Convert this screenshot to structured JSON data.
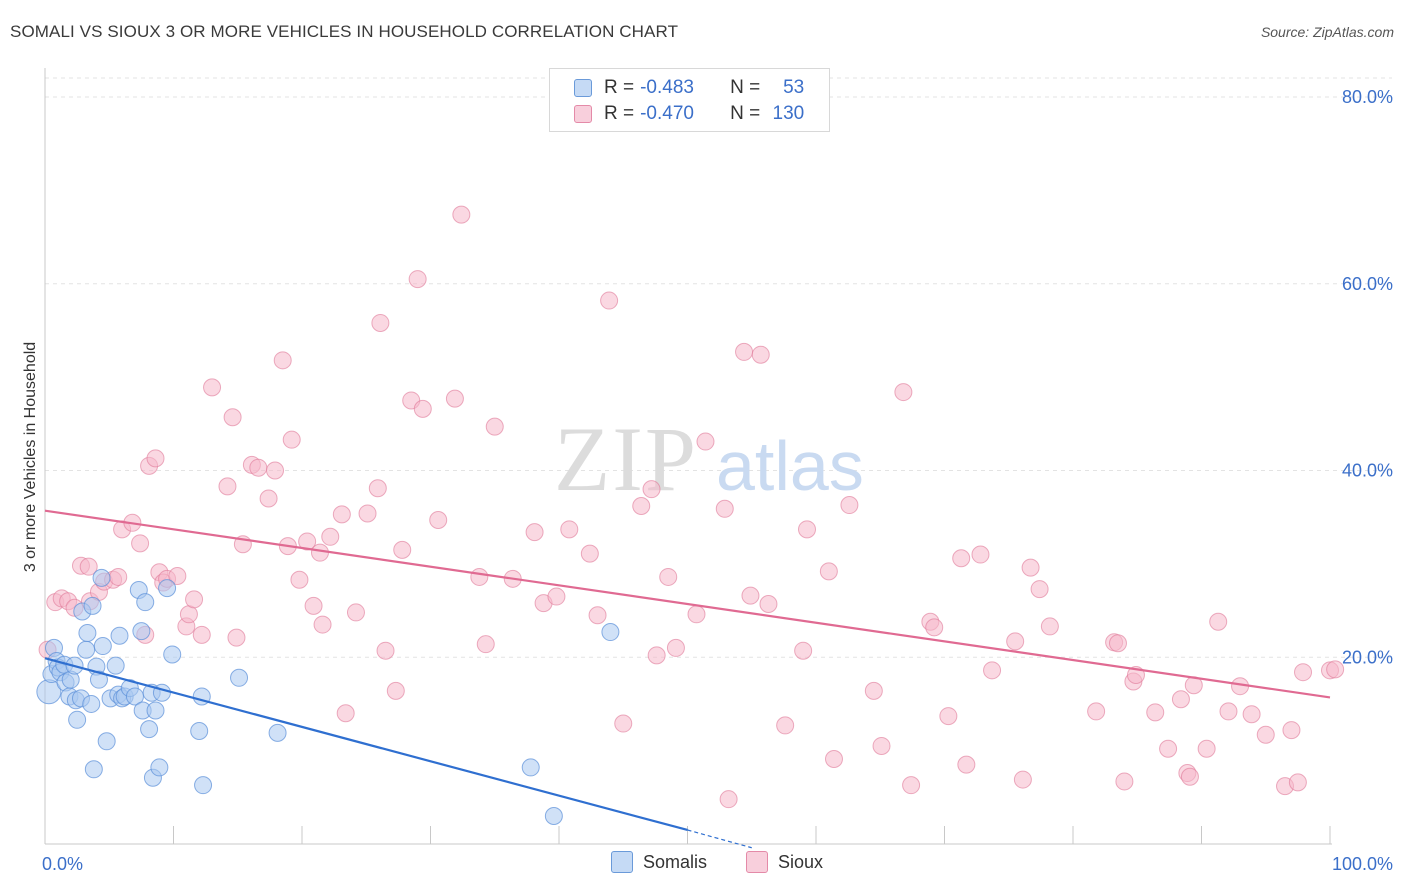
{
  "title": "SOMALI VS SIOUX 3 OR MORE VEHICLES IN HOUSEHOLD CORRELATION CHART",
  "source": "Source: ZipAtlas.com",
  "watermark": {
    "zip": "ZIP",
    "atlas": "atlas"
  },
  "legend": {
    "somalis": {
      "r_label": "R =",
      "r_value": "-0.483",
      "n_label": "N =",
      "n_value": "53"
    },
    "sioux": {
      "r_label": "R =",
      "r_value": "-0.470",
      "n_label": "N =",
      "n_value": "130"
    }
  },
  "colors": {
    "somalis_fill": "#aac8f0",
    "somalis_stroke": "#5a8fd8",
    "somalis_line": "#2f6fd0",
    "sioux_fill": "#f5b8cb",
    "sioux_stroke": "#e07898",
    "sioux_line": "#e06a92",
    "value_blue": "#3b6fc9"
  },
  "chart_data": {
    "type": "scatter",
    "title": "SOMALI VS SIOUX 3 OR MORE VEHICLES IN HOUSEHOLD CORRELATION CHART",
    "xlabel": "",
    "ylabel": "3 or more Vehicles in Household",
    "xlim": [
      0,
      100
    ],
    "ylim": [
      0,
      80
    ],
    "x_tick_labels": [
      "0.0%",
      "100.0%"
    ],
    "y_tick_labels": [
      "20.0%",
      "40.0%",
      "60.0%",
      "80.0%"
    ],
    "y_ticks": [
      20,
      40,
      60,
      80
    ],
    "grid": true,
    "legend_placement": "top-center",
    "series": [
      {
        "name": "Somalis",
        "r": -0.483,
        "n": 53,
        "trend": {
          "x": [
            0,
            50
          ],
          "y": [
            19.9,
            1.5
          ]
        },
        "trend_dashed": {
          "x": [
            50,
            55
          ],
          "y": [
            1.5,
            -0.4
          ]
        },
        "points": [
          [
            0.3,
            16.3
          ],
          [
            0.5,
            18.2
          ],
          [
            0.7,
            21.0
          ],
          [
            0.9,
            19.6
          ],
          [
            1.0,
            18.9
          ],
          [
            1.2,
            18.4
          ],
          [
            1.5,
            19.2
          ],
          [
            1.6,
            17.3
          ],
          [
            1.9,
            15.8
          ],
          [
            2.0,
            17.6
          ],
          [
            2.3,
            19.1
          ],
          [
            2.4,
            15.4
          ],
          [
            2.5,
            13.3
          ],
          [
            2.8,
            15.6
          ],
          [
            2.9,
            24.9
          ],
          [
            3.2,
            20.8
          ],
          [
            3.3,
            22.6
          ],
          [
            3.6,
            15.0
          ],
          [
            3.7,
            25.5
          ],
          [
            3.8,
            8.0
          ],
          [
            4.0,
            19.0
          ],
          [
            4.2,
            17.6
          ],
          [
            4.4,
            28.5
          ],
          [
            4.5,
            21.2
          ],
          [
            4.8,
            11.0
          ],
          [
            5.1,
            15.6
          ],
          [
            5.5,
            19.1
          ],
          [
            5.7,
            16.0
          ],
          [
            5.8,
            22.3
          ],
          [
            6.0,
            15.6
          ],
          [
            6.2,
            15.8
          ],
          [
            6.6,
            16.7
          ],
          [
            7.0,
            15.8
          ],
          [
            7.3,
            27.2
          ],
          [
            7.5,
            22.8
          ],
          [
            7.6,
            14.3
          ],
          [
            7.8,
            25.9
          ],
          [
            8.1,
            12.3
          ],
          [
            8.3,
            16.2
          ],
          [
            8.4,
            7.1
          ],
          [
            8.6,
            14.3
          ],
          [
            8.9,
            8.2
          ],
          [
            9.1,
            16.2
          ],
          [
            9.5,
            27.4
          ],
          [
            9.9,
            20.3
          ],
          [
            12.0,
            12.1
          ],
          [
            12.3,
            6.3
          ],
          [
            12.2,
            15.8
          ],
          [
            15.1,
            17.8
          ],
          [
            18.1,
            11.9
          ],
          [
            37.8,
            8.2
          ],
          [
            39.6,
            3.0
          ],
          [
            44.0,
            22.7
          ]
        ]
      },
      {
        "name": "Sioux",
        "r": -0.47,
        "n": 130,
        "trend": {
          "x": [
            0,
            100
          ],
          "y": [
            35.7,
            15.7
          ]
        },
        "points": [
          [
            0.2,
            20.8
          ],
          [
            0.8,
            25.9
          ],
          [
            1.3,
            26.3
          ],
          [
            1.8,
            26.0
          ],
          [
            2.3,
            25.3
          ],
          [
            2.8,
            29.8
          ],
          [
            3.4,
            29.7
          ],
          [
            3.5,
            26.0
          ],
          [
            4.2,
            27.0
          ],
          [
            4.6,
            28.1
          ],
          [
            5.3,
            28.3
          ],
          [
            5.7,
            28.6
          ],
          [
            6.0,
            33.7
          ],
          [
            6.8,
            34.4
          ],
          [
            7.4,
            32.2
          ],
          [
            7.8,
            22.4
          ],
          [
            8.1,
            40.5
          ],
          [
            8.6,
            41.3
          ],
          [
            8.9,
            29.1
          ],
          [
            9.2,
            28.0
          ],
          [
            9.5,
            28.4
          ],
          [
            10.3,
            28.7
          ],
          [
            11.0,
            23.3
          ],
          [
            11.2,
            24.6
          ],
          [
            11.6,
            26.2
          ],
          [
            12.2,
            22.4
          ],
          [
            13.0,
            48.9
          ],
          [
            14.2,
            38.3
          ],
          [
            14.6,
            45.7
          ],
          [
            14.9,
            22.1
          ],
          [
            15.4,
            32.1
          ],
          [
            16.1,
            40.6
          ],
          [
            16.6,
            40.3
          ],
          [
            17.4,
            37.0
          ],
          [
            17.9,
            40.0
          ],
          [
            18.5,
            51.8
          ],
          [
            18.9,
            31.9
          ],
          [
            19.2,
            43.3
          ],
          [
            19.8,
            28.3
          ],
          [
            20.4,
            32.4
          ],
          [
            20.9,
            25.5
          ],
          [
            21.4,
            31.2
          ],
          [
            21.6,
            23.5
          ],
          [
            22.2,
            32.9
          ],
          [
            23.1,
            35.3
          ],
          [
            23.4,
            14.0
          ],
          [
            24.2,
            24.8
          ],
          [
            25.1,
            35.4
          ],
          [
            25.9,
            38.1
          ],
          [
            26.1,
            55.8
          ],
          [
            26.5,
            20.7
          ],
          [
            27.3,
            16.4
          ],
          [
            27.8,
            31.5
          ],
          [
            28.5,
            47.5
          ],
          [
            29.0,
            60.5
          ],
          [
            29.4,
            46.6
          ],
          [
            30.6,
            34.7
          ],
          [
            31.9,
            47.7
          ],
          [
            32.4,
            67.4
          ],
          [
            33.8,
            28.6
          ],
          [
            34.3,
            21.4
          ],
          [
            35.0,
            44.7
          ],
          [
            36.4,
            28.4
          ],
          [
            38.1,
            33.4
          ],
          [
            38.8,
            25.8
          ],
          [
            39.8,
            26.5
          ],
          [
            40.8,
            33.7
          ],
          [
            42.4,
            31.1
          ],
          [
            43.0,
            24.5
          ],
          [
            43.9,
            58.2
          ],
          [
            45.0,
            12.9
          ],
          [
            46.4,
            36.2
          ],
          [
            47.2,
            38.0
          ],
          [
            47.6,
            20.2
          ],
          [
            48.5,
            28.6
          ],
          [
            49.1,
            21.0
          ],
          [
            50.7,
            24.6
          ],
          [
            51.4,
            43.1
          ],
          [
            52.9,
            35.9
          ],
          [
            53.2,
            4.8
          ],
          [
            54.4,
            52.7
          ],
          [
            54.9,
            26.6
          ],
          [
            55.7,
            52.4
          ],
          [
            56.3,
            25.7
          ],
          [
            57.6,
            12.7
          ],
          [
            59.0,
            20.7
          ],
          [
            59.3,
            33.7
          ],
          [
            61.0,
            29.2
          ],
          [
            61.4,
            9.1
          ],
          [
            62.6,
            36.3
          ],
          [
            64.5,
            16.4
          ],
          [
            65.1,
            10.5
          ],
          [
            66.8,
            48.4
          ],
          [
            67.4,
            6.3
          ],
          [
            68.9,
            23.8
          ],
          [
            69.2,
            23.2
          ],
          [
            70.3,
            13.7
          ],
          [
            71.3,
            30.6
          ],
          [
            71.7,
            8.5
          ],
          [
            72.8,
            31.0
          ],
          [
            73.7,
            18.6
          ],
          [
            75.5,
            21.7
          ],
          [
            76.1,
            6.9
          ],
          [
            76.7,
            29.6
          ],
          [
            77.4,
            27.3
          ],
          [
            78.2,
            23.3
          ],
          [
            81.8,
            14.2
          ],
          [
            83.2,
            21.6
          ],
          [
            83.5,
            21.5
          ],
          [
            84.0,
            6.7
          ],
          [
            84.7,
            17.4
          ],
          [
            84.9,
            18.1
          ],
          [
            86.4,
            14.1
          ],
          [
            87.4,
            10.2
          ],
          [
            88.4,
            15.5
          ],
          [
            88.9,
            7.6
          ],
          [
            89.1,
            7.2
          ],
          [
            89.4,
            17.0
          ],
          [
            90.4,
            10.2
          ],
          [
            91.3,
            23.8
          ],
          [
            92.1,
            14.2
          ],
          [
            93.0,
            16.9
          ],
          [
            93.9,
            13.9
          ],
          [
            95.0,
            11.7
          ],
          [
            96.5,
            6.2
          ],
          [
            97.0,
            12.2
          ],
          [
            97.5,
            6.6
          ],
          [
            97.9,
            18.4
          ],
          [
            100.0,
            18.6
          ],
          [
            100.4,
            18.7
          ]
        ]
      }
    ]
  },
  "bottom_legend": {
    "somalis": "Somalis",
    "sioux": "Sioux"
  }
}
